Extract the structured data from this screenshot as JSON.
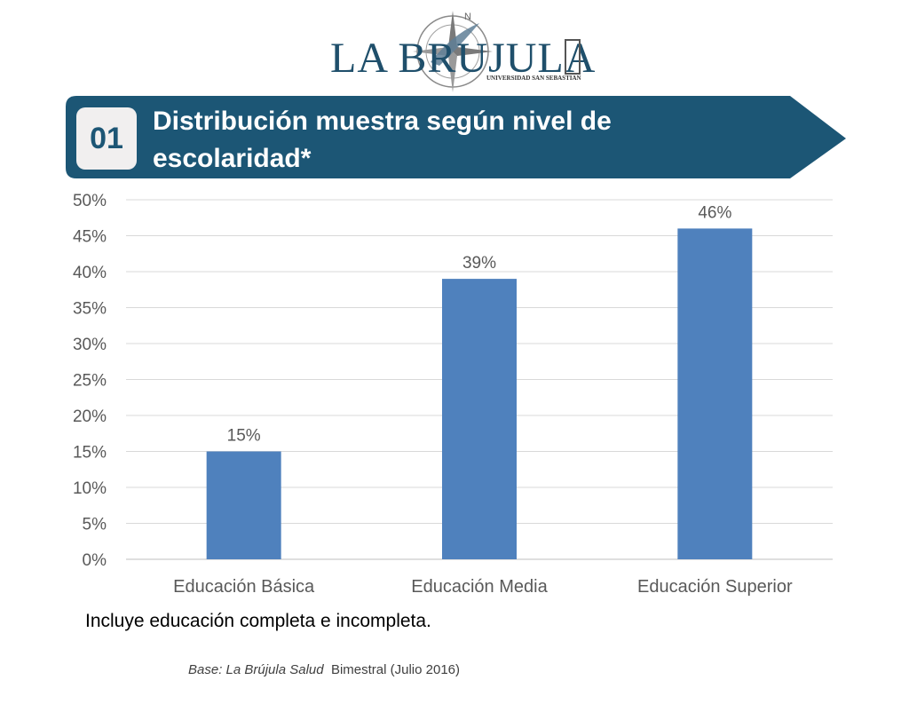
{
  "logo": {
    "name": "LA BRUJULA",
    "subtitle": "UNIVERSIDAD SAN SEBASTIAN"
  },
  "banner": {
    "number": "01",
    "title": "Distribución muestra según nivel de escolaridad*",
    "color": "#1c5675"
  },
  "chart_data": {
    "type": "bar",
    "categories": [
      "Educación Básica",
      "Educación Media",
      "Educación Superior"
    ],
    "values": [
      15,
      39,
      46
    ],
    "value_labels": [
      "15%",
      "39%",
      "46%"
    ],
    "ylim": [
      0,
      50
    ],
    "yticks": [
      0,
      5,
      10,
      15,
      20,
      25,
      30,
      35,
      40,
      45,
      50
    ],
    "ytick_labels": [
      "0%",
      "5%",
      "10%",
      "15%",
      "20%",
      "25%",
      "30%",
      "35%",
      "40%",
      "45%",
      "50%"
    ],
    "grid": true,
    "bar_color": "#4f81bd",
    "xlabel": "",
    "ylabel": ""
  },
  "footnote": "Incluye educación completa e incompleta.",
  "source": {
    "italic": "Base: La Brújula Salud",
    "rest": "Bimestral (Julio 2016)"
  }
}
